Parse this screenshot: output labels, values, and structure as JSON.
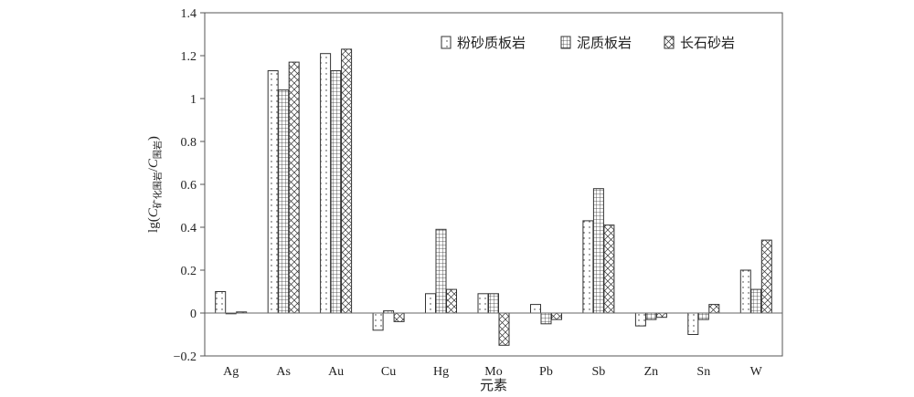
{
  "chart_data": {
    "type": "bar",
    "xlabel": "元素",
    "ylabel": {
      "prefix": "lg(",
      "c1": "C",
      "sub1": "矿化围岩",
      "slash": "/",
      "c2": "C",
      "sub2": "围岩",
      "suffix": ")"
    },
    "categories": [
      "Ag",
      "As",
      "Au",
      "Cu",
      "Hg",
      "Mo",
      "Pb",
      "Sb",
      "Zn",
      "Sn",
      "W"
    ],
    "series": [
      {
        "name": "粉砂质板岩",
        "pattern": "dots",
        "values": [
          0.1,
          1.13,
          1.21,
          -0.08,
          0.09,
          0.09,
          0.04,
          0.43,
          -0.06,
          -0.1,
          0.2
        ]
      },
      {
        "name": "泥质板岩",
        "pattern": "grid",
        "values": [
          0.0,
          1.04,
          1.13,
          0.01,
          0.39,
          0.09,
          -0.05,
          0.58,
          -0.03,
          -0.03,
          0.11
        ]
      },
      {
        "name": "长石砂岩",
        "pattern": "cross",
        "values": [
          0.005,
          1.17,
          1.23,
          -0.04,
          0.11,
          -0.15,
          -0.03,
          0.41,
          -0.02,
          0.04,
          0.34
        ]
      }
    ],
    "ylim": [
      -0.2,
      1.4
    ],
    "yticks": [
      -0.2,
      0,
      0.2,
      0.4,
      0.6,
      0.8,
      1,
      1.2,
      1.4
    ],
    "ytick_labels": [
      "−0.2",
      "0",
      "0.2",
      "0.4",
      "0.6",
      "0.8",
      "1",
      "1.2",
      "1.4"
    ],
    "grid": false,
    "legend": "top-right"
  }
}
